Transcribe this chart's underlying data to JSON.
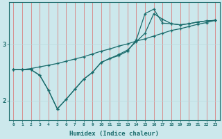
{
  "title": "",
  "xlabel": "Humidex (Indice chaleur)",
  "xlim": [
    -0.5,
    23.5
  ],
  "ylim": [
    1.65,
    3.75
  ],
  "xticks": [
    0,
    1,
    2,
    3,
    4,
    5,
    6,
    7,
    8,
    9,
    10,
    11,
    12,
    13,
    14,
    15,
    16,
    17,
    18,
    19,
    20,
    21,
    22,
    23
  ],
  "yticks": [
    2,
    3
  ],
  "bg_color": "#cce8ec",
  "line_color": "#1a6b6b",
  "grid_v_color": "#d88080",
  "line1_x": [
    0,
    1,
    2,
    3,
    4,
    5,
    6,
    7,
    8,
    9,
    10,
    11,
    12,
    13,
    14,
    15,
    16,
    17,
    18,
    19,
    20,
    21,
    22,
    23
  ],
  "line1_y": [
    2.55,
    2.55,
    2.57,
    2.6,
    2.63,
    2.66,
    2.7,
    2.74,
    2.78,
    2.83,
    2.88,
    2.92,
    2.97,
    3.01,
    3.06,
    3.1,
    3.15,
    3.2,
    3.25,
    3.28,
    3.32,
    3.36,
    3.39,
    3.43
  ],
  "line2_x": [
    0,
    1,
    2,
    3,
    4,
    5,
    6,
    7,
    8,
    9,
    10,
    11,
    12,
    13,
    14,
    15,
    16,
    17,
    18,
    19,
    20,
    21,
    22,
    23
  ],
  "line2_y": [
    2.55,
    2.55,
    2.55,
    2.45,
    2.18,
    1.85,
    2.02,
    2.2,
    2.38,
    2.5,
    2.68,
    2.75,
    2.82,
    2.9,
    3.05,
    3.2,
    3.55,
    3.45,
    3.37,
    3.35,
    3.37,
    3.4,
    3.42,
    3.43
  ],
  "line3_x": [
    0,
    1,
    2,
    3,
    4,
    5,
    6,
    7,
    8,
    9,
    10,
    11,
    12,
    13,
    14,
    15,
    16,
    17,
    18,
    19,
    20,
    21,
    22,
    23
  ],
  "line3_y": [
    2.55,
    2.55,
    2.55,
    2.45,
    2.18,
    1.85,
    2.02,
    2.2,
    2.38,
    2.5,
    2.68,
    2.75,
    2.8,
    2.88,
    3.08,
    3.55,
    3.63,
    3.38,
    3.37,
    3.35,
    3.37,
    3.4,
    3.42,
    3.43
  ]
}
